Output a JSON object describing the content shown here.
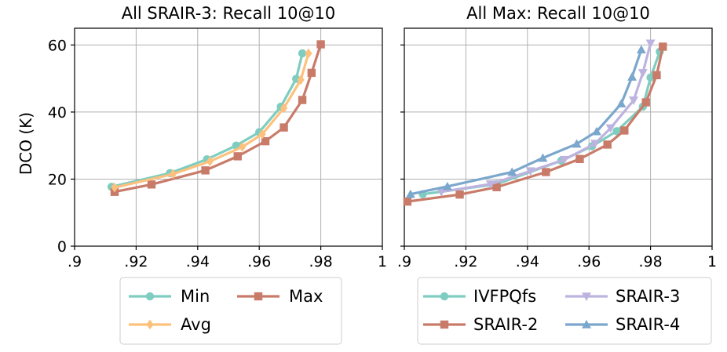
{
  "ylabel": "DCO (K)",
  "colors": {
    "min": "#7ecdc0",
    "max": "#c97b69",
    "avg": "#fdc17d",
    "ivfpqfs": "#7ecdc0",
    "srair2": "#c97b69",
    "srair3": "#bdb3df",
    "srair4": "#7ba7cd"
  },
  "chart_data": [
    {
      "type": "line",
      "title": "All SRAIR-3: Recall 10@10",
      "xlabel": "",
      "ylabel": "DCO (K)",
      "xlim": [
        0.9,
        1.0
      ],
      "ylim": [
        0,
        65
      ],
      "xticks": [
        0.9,
        0.92,
        0.94,
        0.96,
        0.98,
        1.0
      ],
      "xtick_labels": [
        ".9",
        ".92",
        ".94",
        ".96",
        ".98",
        "1"
      ],
      "yticks": [
        0,
        20,
        40,
        60
      ],
      "ytick_labels": [
        "0",
        "20",
        "40",
        "60"
      ],
      "grid": true,
      "legend_position": "below",
      "series": [
        {
          "name": "Min",
          "color_key": "min",
          "marker": "circle",
          "x": [
            0.912,
            0.931,
            0.943,
            0.9525,
            0.96,
            0.967,
            0.972,
            0.974
          ],
          "y": [
            17.7,
            21.8,
            25.9,
            30.0,
            34.0,
            41.6,
            49.9,
            57.5
          ]
        },
        {
          "name": "Max",
          "color_key": "max",
          "marker": "square",
          "x": [
            0.913,
            0.925,
            0.9425,
            0.953,
            0.962,
            0.968,
            0.974,
            0.977,
            0.98
          ],
          "y": [
            16.2,
            18.4,
            22.6,
            26.8,
            31.3,
            35.4,
            43.6,
            51.7,
            60.2
          ]
        },
        {
          "name": "Avg",
          "color_key": "avg",
          "marker": "diamond",
          "x": [
            0.913,
            0.932,
            0.944,
            0.9545,
            0.961,
            0.968,
            0.9735,
            0.976
          ],
          "y": [
            17.5,
            21.5,
            25.3,
            29.6,
            33.4,
            41.2,
            49.6,
            57.5
          ]
        }
      ]
    },
    {
      "type": "line",
      "title": "All Max: Recall 10@10",
      "xlabel": "",
      "ylabel": "",
      "xlim": [
        0.9,
        1.0
      ],
      "ylim": [
        0,
        65
      ],
      "xticks": [
        0.9,
        0.92,
        0.94,
        0.96,
        0.98,
        1.0
      ],
      "xtick_labels": [
        ".9",
        ".92",
        ".94",
        ".96",
        ".98",
        "1"
      ],
      "yticks": [
        0,
        20,
        40,
        60
      ],
      "grid": true,
      "legend_position": "below",
      "series": [
        {
          "name": "IVFPQfs",
          "color_key": "ivfpqfs",
          "marker": "circle",
          "x": [
            0.906,
            0.93,
            0.951,
            0.961,
            0.969,
            0.9775,
            0.98,
            0.983
          ],
          "y": [
            15.5,
            18.5,
            25.5,
            29.8,
            34.3,
            41.6,
            50.3,
            58.0
          ]
        },
        {
          "name": "SRAIR-2",
          "color_key": "srair2",
          "marker": "square",
          "x": [
            0.901,
            0.918,
            0.93,
            0.946,
            0.957,
            0.966,
            0.9715,
            0.9785,
            0.982,
            0.984
          ],
          "y": [
            13.3,
            15.4,
            17.6,
            22.1,
            26.0,
            30.3,
            34.5,
            42.9,
            51.0,
            59.5
          ]
        },
        {
          "name": "SRAIR-3",
          "color_key": "srair3",
          "marker": "triangle-down",
          "x": [
            0.912,
            0.928,
            0.941,
            0.952,
            0.962,
            0.967,
            0.9745,
            0.9775,
            0.98
          ],
          "y": [
            16.2,
            18.5,
            22.4,
            25.8,
            30.6,
            35.2,
            43.5,
            51.7,
            60.5
          ]
        },
        {
          "name": "SRAIR-4",
          "color_key": "srair4",
          "marker": "triangle-up",
          "x": [
            0.902,
            0.914,
            0.935,
            0.945,
            0.956,
            0.9625,
            0.9705,
            0.974,
            0.977
          ],
          "y": [
            15.5,
            17.8,
            22.1,
            26.3,
            30.5,
            34.2,
            42.5,
            50.5,
            58.6
          ]
        }
      ]
    }
  ]
}
